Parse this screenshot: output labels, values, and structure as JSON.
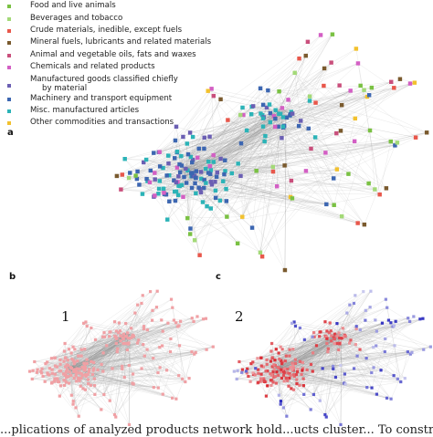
{
  "panel_a": {
    "letter": "a",
    "legend": [
      {
        "label": "Food and live animals",
        "color": "#7ac143"
      },
      {
        "label": "Beverages and tobacco",
        "color": "#a3d977"
      },
      {
        "label": "Crude materials, inedible, except fuels",
        "color": "#e8574b"
      },
      {
        "label": "Mineral fuels, lubricants and related materials",
        "color": "#7a5a2e"
      },
      {
        "label": "Animal and vegetable oils, fats and waxes",
        "color": "#c94f7c"
      },
      {
        "label": "Chemicals and related products",
        "color": "#d35fc4"
      },
      {
        "label": "Manufactured goods classified chiefly",
        "label2": "by material",
        "color": "#6b5fb3"
      },
      {
        "label": "Machinery and transport equipment",
        "color": "#3c66b1"
      },
      {
        "label": "Misc. manufactured articles",
        "color": "#2bb3b7"
      },
      {
        "label": "Other commodities and transactions",
        "color": "#f2c12e"
      }
    ]
  },
  "panel_b": {
    "letter": "b",
    "label": "1",
    "node_color": "#f0a0a4"
  },
  "panel_c": {
    "letter": "c",
    "label": "2",
    "pos_color": "#d9262e",
    "neg_color": "#2b2bbf"
  },
  "caption": "...plications of analyzed products network hold...ucts cluster... To construct the ..."
}
